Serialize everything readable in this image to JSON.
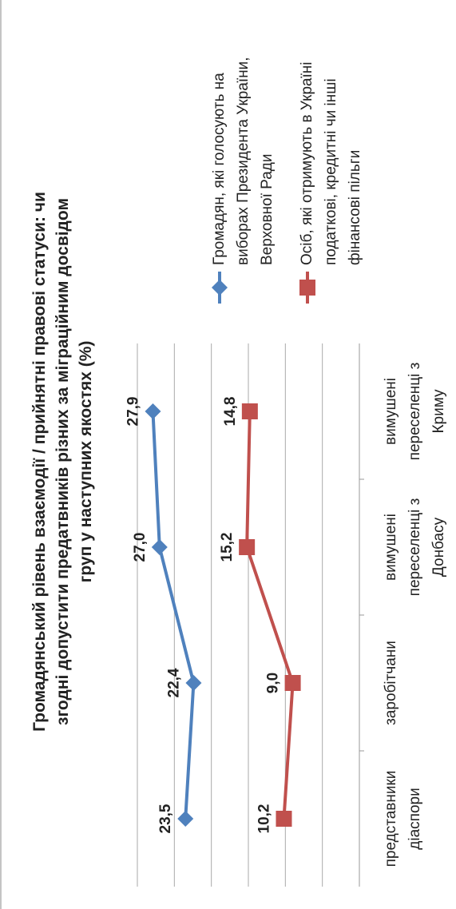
{
  "chart_data": {
    "type": "line",
    "title": "Громадянський рівень взаємодії / прийнятні правові статуси: чи згодні допустити предатвників різних за міграційним досвідом груп у наступних якостях (%)",
    "categories": [
      "представники діаспори",
      "заробітчани",
      "вимушені переселенці з Донбасу",
      "вимушені переселенці з Криму"
    ],
    "series": [
      {
        "name": "Громадян, які голосують на виборах Президента України, Верховної Ради",
        "color": "#4f81bd",
        "marker": "diamond",
        "values": [
          23.5,
          22.4,
          27.0,
          27.9
        ],
        "value_labels": [
          "23,5",
          "22,4",
          "27,0",
          "27,9"
        ]
      },
      {
        "name": "Осіб, які отримують в Україні податкові, кредитні чи інші фінансові пільги",
        "color": "#c0504d",
        "marker": "square",
        "values": [
          10.2,
          9.0,
          15.2,
          14.8
        ],
        "value_labels": [
          "10,2",
          "9,0",
          "15,2",
          "14,8"
        ]
      }
    ],
    "ylim": [
      0,
      30
    ],
    "yticks": [
      0,
      5,
      10,
      15,
      20,
      25,
      30
    ],
    "grid": true,
    "legend": "right"
  }
}
